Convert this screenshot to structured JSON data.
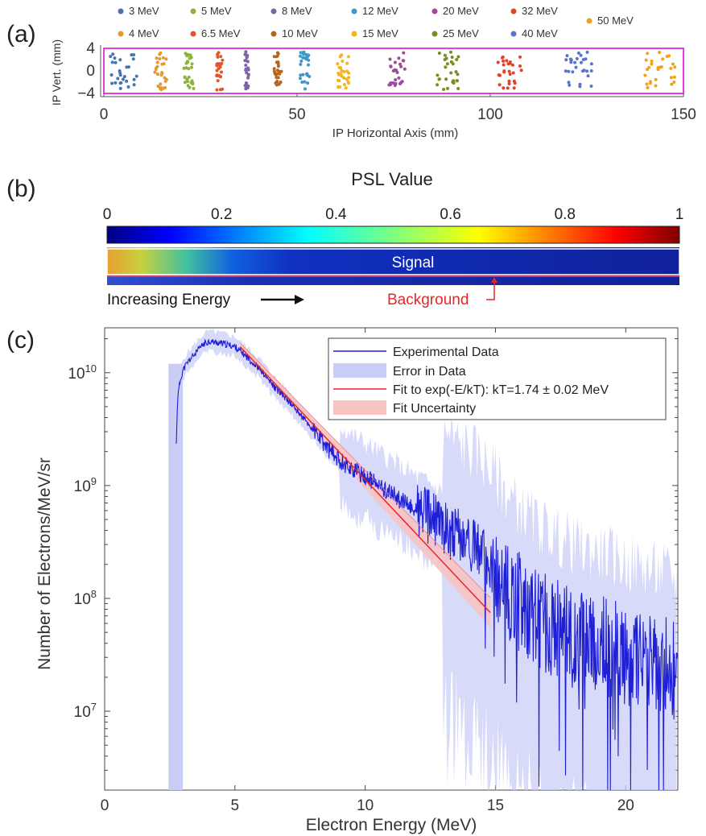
{
  "panel_labels": {
    "a": "(a)",
    "b": "(b)",
    "c": "(c)"
  },
  "colors": {
    "e3": "#4a72b0",
    "e4": "#e69a2e",
    "e5": "#8db33a",
    "e6_5": "#e0572b",
    "e8": "#7d63a8",
    "e10": "#b5651d",
    "e12": "#3f97c9",
    "e15": "#f2b51c",
    "e20": "#9b4c9a",
    "e25": "#7a8e1e",
    "e32": "#e0432b",
    "e40": "#5778c9",
    "e50": "#f0a21e",
    "frame": "#e040e0",
    "data": "#1f1fd6",
    "error": "#c9cdf5",
    "fit": "#e8252a",
    "fit_band": "#f7c3c3",
    "annotation": "#e8252a"
  },
  "panel_b": {
    "colorbar_title": "PSL Value",
    "colorbar_ticks": [
      "0",
      "0.2",
      "0.4",
      "0.6",
      "0.8",
      "1"
    ],
    "signal_label": "Signal",
    "background_label": "Background",
    "energy_label": "Increasing Energy"
  },
  "chart_data": [
    {
      "type": "scatter",
      "xlabel": "IP Horizontal Axis (mm)",
      "ylabel": "IP Vert. (mm)",
      "xlim": [
        0,
        150
      ],
      "ylim": [
        -4,
        4
      ],
      "xticks": [
        0,
        50,
        100,
        150
      ],
      "yticks": [
        4,
        0,
        -4
      ],
      "legend_placement": "top",
      "series": [
        {
          "name": "3 MeV",
          "x_center": 5,
          "x_spread": 3.5,
          "color_key": "e3"
        },
        {
          "name": "4 MeV",
          "x_center": 15,
          "x_spread": 1.8,
          "color_key": "e4"
        },
        {
          "name": "5 MeV",
          "x_center": 22,
          "x_spread": 1.3,
          "color_key": "e5"
        },
        {
          "name": "6.5 MeV",
          "x_center": 30,
          "x_spread": 0.8,
          "color_key": "e6_5"
        },
        {
          "name": "8 MeV",
          "x_center": 37,
          "x_spread": 0.5,
          "color_key": "e8"
        },
        {
          "name": "10 MeV",
          "x_center": 45,
          "x_spread": 1.0,
          "color_key": "e10"
        },
        {
          "name": "12 MeV",
          "x_center": 52,
          "x_spread": 1.2,
          "color_key": "e12"
        },
        {
          "name": "15 MeV",
          "x_center": 62,
          "x_spread": 1.6,
          "color_key": "e15"
        },
        {
          "name": "20 MeV",
          "x_center": 76,
          "x_spread": 2.2,
          "color_key": "e20"
        },
        {
          "name": "25 MeV",
          "x_center": 89,
          "x_spread": 2.8,
          "color_key": "e25"
        },
        {
          "name": "32 MeV",
          "x_center": 105,
          "x_spread": 3.2,
          "color_key": "e32"
        },
        {
          "name": "40 MeV",
          "x_center": 123,
          "x_spread": 3.6,
          "color_key": "e40"
        },
        {
          "name": "50 MeV",
          "x_center": 144,
          "x_spread": 4.0,
          "color_key": "e50"
        }
      ]
    },
    {
      "type": "line",
      "xlabel": "Electron Energy (MeV)",
      "ylabel": "Number of Electrons/MeV/sr",
      "xlim": [
        0,
        22
      ],
      "ylim": [
        2000000,
        25000000000
      ],
      "yscale": "log",
      "xticks": [
        0,
        5,
        10,
        15,
        20
      ],
      "yticks": [
        {
          "value": 10000000,
          "label": "10^7"
        },
        {
          "value": 100000000,
          "label": "10^8"
        },
        {
          "value": 1000000000,
          "label": "10^9"
        },
        {
          "value": 10000000000,
          "label": "10^10"
        }
      ],
      "legend_placement": "top-right",
      "series": [
        {
          "name": "Experimental Data",
          "x": [
            2.75,
            2.8,
            2.9,
            3.0,
            3.2,
            3.5,
            3.8,
            4.0,
            4.3,
            4.6,
            5.0,
            5.5,
            6.0,
            6.5,
            7.0,
            7.5,
            8.0,
            8.5,
            9.0,
            9.5,
            10.0,
            10.5,
            11.0,
            11.5,
            12.0,
            12.5,
            13.0,
            13.5,
            14.0,
            14.5,
            15.0,
            15.5,
            16.0,
            16.5,
            17.0,
            17.5,
            18.0,
            18.5,
            19.0,
            19.5,
            20.0,
            20.5,
            21.0,
            21.5,
            22.0
          ],
          "y": [
            2300000000,
            6000000000,
            8500000000,
            10500000000,
            12500000000,
            15000000000,
            18000000000,
            19000000000,
            18500000000,
            18000000000,
            17000000000,
            13500000000,
            10500000000,
            7500000000,
            5800000000,
            4300000000,
            3100000000,
            2200000000,
            1700000000,
            1400000000,
            1200000000,
            1000000000,
            850000000,
            700000000,
            600000000,
            520000000,
            430000000,
            360000000,
            310000000,
            260000000,
            180000000,
            120000000,
            90000000,
            70000000,
            60000000,
            50000000,
            45000000,
            40000000,
            38000000,
            35000000,
            30000000,
            28000000,
            26000000,
            25000000,
            22000000
          ]
        },
        {
          "name": "Error in Data"
        },
        {
          "name": "Fit to exp(-E/kT): kT=1.74 ± 0.02 MeV",
          "x": [
            5.2,
            14.8
          ],
          "y": [
            17000000000,
            75000000
          ]
        },
        {
          "name": "Fit Uncertainty"
        }
      ]
    }
  ]
}
